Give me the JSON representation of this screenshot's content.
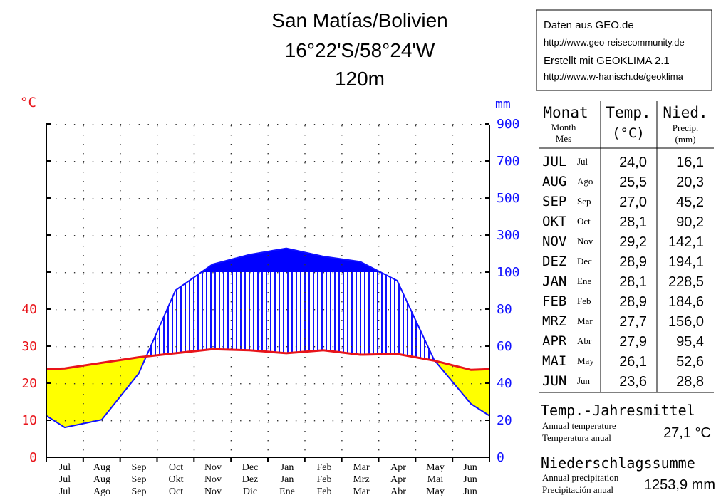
{
  "header": {
    "station": "San Matías/Bolivien",
    "coords": "16°22'S/58°24'W",
    "elevation": "120m"
  },
  "source_box": {
    "line1": "Daten aus GEO.de",
    "line2": "http://www.geo-reisecommunity.de",
    "line3": "Erstellt mit GEOKLIMA 2.1",
    "line4": "http://www.w-hanisch.de/geoklima"
  },
  "colors": {
    "temperature": "#e8141a",
    "precip_line": "#1010ff",
    "humid": "#1010ff",
    "arid": "#ffff00",
    "perhumid": "#0000ff"
  },
  "chart_data": {
    "type": "line",
    "temp_unit": "°C",
    "precip_unit": "mm",
    "temp_ticks": [
      "0",
      "10",
      "20",
      "30",
      "40"
    ],
    "precip_ticks": [
      "0",
      "20",
      "40",
      "60",
      "80",
      "100",
      "300",
      "500",
      "700",
      "900"
    ],
    "precip_scale": "2 mm per °C up to 100 mm, 20 mm per °C above 100 mm",
    "months_row1": [
      "Jul",
      "Aug",
      "Sep",
      "Oct",
      "Nov",
      "Dec",
      "Jan",
      "Feb",
      "Mar",
      "Apr",
      "May",
      "Jun"
    ],
    "months_row2": [
      "Jul",
      "Aug",
      "Sep",
      "Okt",
      "Nov",
      "Dez",
      "Jan",
      "Feb",
      "Mrz",
      "Apr",
      "Mai",
      "Jun"
    ],
    "months_row3": [
      "Jul",
      "Ago",
      "Sep",
      "Oct",
      "Nov",
      "Dic",
      "Ene",
      "Feb",
      "Mar",
      "Abr",
      "May",
      "Jun"
    ],
    "temperature": [
      24.0,
      25.5,
      27.0,
      28.1,
      29.2,
      28.9,
      28.1,
      28.9,
      27.7,
      27.9,
      26.1,
      23.6
    ],
    "precipitation": [
      16.1,
      20.3,
      45.2,
      90.2,
      142.1,
      194.1,
      228.5,
      184.6,
      156.0,
      95.4,
      52.6,
      28.8
    ]
  },
  "table": {
    "col_month": "Monat",
    "col_month_en": "Month",
    "col_month_es": "Mes",
    "col_temp": "Temp.",
    "col_temp_unit": "(°C)",
    "col_precip": "Nied.",
    "col_precip_en": "Precip.",
    "col_precip_unit": "(mm)",
    "rows": [
      {
        "de": "JUL",
        "es": "Jul",
        "temp": "24,0",
        "precip": "16,1"
      },
      {
        "de": "AUG",
        "es": "Ago",
        "temp": "25,5",
        "precip": "20,3"
      },
      {
        "de": "SEP",
        "es": "Sep",
        "temp": "27,0",
        "precip": "45,2"
      },
      {
        "de": "OKT",
        "es": "Oct",
        "temp": "28,1",
        "precip": "90,2"
      },
      {
        "de": "NOV",
        "es": "Nov",
        "temp": "29,2",
        "precip": "142,1"
      },
      {
        "de": "DEZ",
        "es": "Dec",
        "temp": "28,9",
        "precip": "194,1"
      },
      {
        "de": "JAN",
        "es": "Ene",
        "temp": "28,1",
        "precip": "228,5"
      },
      {
        "de": "FEB",
        "es": "Feb",
        "temp": "28,9",
        "precip": "184,6"
      },
      {
        "de": "MRZ",
        "es": "Mar",
        "temp": "27,7",
        "precip": "156,0"
      },
      {
        "de": "APR",
        "es": "Abr",
        "temp": "27,9",
        "precip": "95,4"
      },
      {
        "de": "MAI",
        "es": "May",
        "temp": "26,1",
        "precip": "52,6"
      },
      {
        "de": "JUN",
        "es": "Jun",
        "temp": "23,6",
        "precip": "28,8"
      }
    ]
  },
  "annual": {
    "temp_title": "Temp.-Jahresmittel",
    "temp_en": "Annual temperature",
    "temp_es": "Temperatura  anual",
    "temp_value": "27,1 °C",
    "precip_title": "Niederschlagssumme",
    "precip_en": "Annual precipitation",
    "precip_es": "Precipitación  anual",
    "precip_value": "1253,9 mm"
  }
}
